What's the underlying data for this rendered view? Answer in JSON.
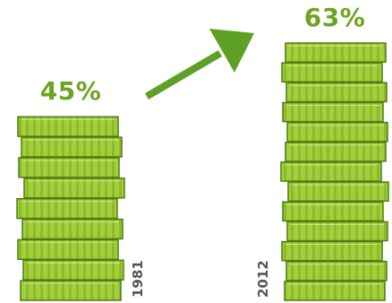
{
  "chart_data": {
    "type": "bar",
    "categories": [
      "1981",
      "2012"
    ],
    "values": [
      45,
      63
    ],
    "data_labels": [
      "45%",
      "63%"
    ],
    "title": "",
    "xlabel": "",
    "ylabel": "",
    "ylim": [
      0,
      63
    ],
    "grid": false,
    "legend": "none",
    "trend": "increase",
    "marker": "stacked-coins"
  },
  "colors": {
    "coin_light": "#a4cf3c",
    "coin_stripe": "#8cbb2a",
    "coin_edge": "#4f7d12",
    "accent_text": "#6da523",
    "arrow": "#5e9f26",
    "year_text": "#555555"
  }
}
